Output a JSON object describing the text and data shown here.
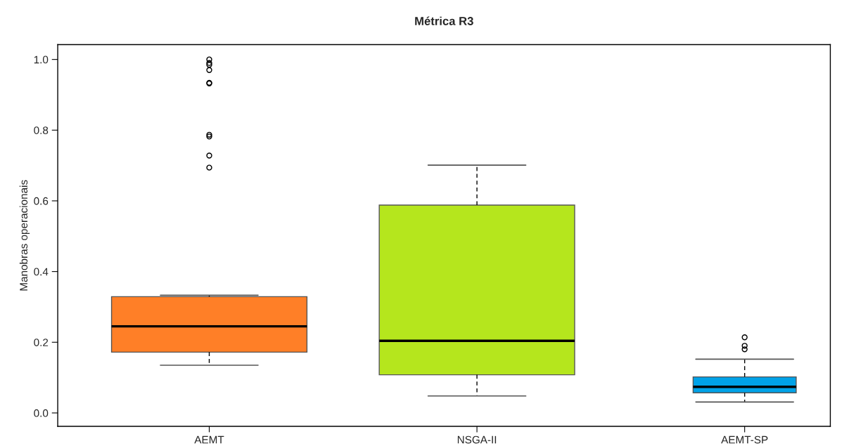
{
  "chart_data": {
    "type": "box",
    "title": "Métrica R3",
    "ylabel": "Manobras operacionais",
    "categories": [
      "AEMT",
      "NSGA-II",
      "AEMT-SP"
    ],
    "colors": [
      "#ff7f27",
      "#b5e61d",
      "#00a2e8"
    ],
    "boxes": [
      {
        "low": 0.135,
        "q1": 0.172,
        "median": 0.245,
        "q3": 0.329,
        "high": 0.333,
        "outliers": [
          1.0,
          0.99,
          0.985,
          0.97,
          0.934,
          0.932,
          0.787,
          0.782,
          0.728,
          0.694
        ]
      },
      {
        "low": 0.048,
        "q1": 0.108,
        "median": 0.204,
        "q3": 0.588,
        "high": 0.701
      },
      {
        "low": 0.031,
        "q1": 0.057,
        "median": 0.074,
        "q3": 0.102,
        "high": 0.152,
        "outliers": [
          0.214,
          0.19,
          0.18
        ]
      }
    ],
    "ylim": [
      -0.038,
      1.042
    ],
    "yticks": [
      {
        "value": 0,
        "label": "0.0"
      },
      0.2,
      0.4,
      0.6,
      0.8,
      {
        "value": 1,
        "label": "1.0"
      }
    ],
    "grid": false,
    "marker": "circle"
  }
}
